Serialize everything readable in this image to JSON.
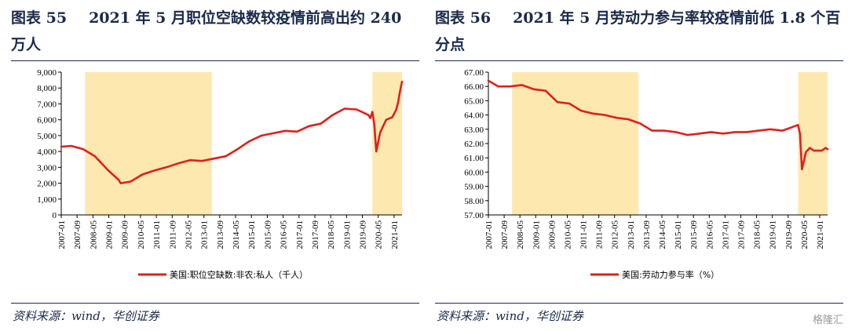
{
  "panels": [
    {
      "title_num": "图表 55",
      "title_text": "2021 年 5 月职位空缺数较疫情前高出约 240 万人",
      "source": "资料来源：wind，华创证券"
    },
    {
      "title_num": "图表 56",
      "title_text": "2021 年 5 月劳动力参与率较疫情前低 1.8 个百分点",
      "source": "资料来源：wind，华创证券"
    }
  ],
  "watermark": "格隆汇",
  "colors": {
    "line": "#e0201a",
    "shade": "#fde8b0",
    "axis": "#000000",
    "title": "#1a2a4a"
  },
  "chart_data": [
    {
      "type": "line",
      "x_ticks": [
        "2007-01",
        "2007-09",
        "2008-05",
        "2009-01",
        "2009-09",
        "2010-05",
        "2011-01",
        "2011-09",
        "2012-05",
        "2013-01",
        "2013-09",
        "2014-05",
        "2015-01",
        "2015-09",
        "2016-05",
        "2017-01",
        "2017-09",
        "2018-05",
        "2019-01",
        "2019-09",
        "2020-05",
        "2021-01"
      ],
      "y_ticks": [
        "0",
        "1,000",
        "2,000",
        "3,000",
        "4,000",
        "5,000",
        "6,000",
        "7,000",
        "8,000",
        "9,000"
      ],
      "ylim": [
        0,
        9000
      ],
      "xlim": [
        "2007-01",
        "2021-05"
      ],
      "shaded": [
        [
          "2008-01",
          "2013-05"
        ],
        [
          "2020-02",
          "2021-05"
        ]
      ],
      "series": [
        {
          "name": "美国:职位空缺数:非农:私人（千人）",
          "x": [
            "2007-01",
            "2007-06",
            "2007-12",
            "2008-06",
            "2008-12",
            "2009-06",
            "2009-07",
            "2009-12",
            "2010-06",
            "2010-12",
            "2011-06",
            "2011-12",
            "2012-06",
            "2012-12",
            "2013-06",
            "2013-12",
            "2014-06",
            "2014-12",
            "2015-06",
            "2015-12",
            "2016-06",
            "2016-12",
            "2017-06",
            "2017-12",
            "2018-06",
            "2018-12",
            "2019-06",
            "2019-12",
            "2020-01",
            "2020-02",
            "2020-03",
            "2020-04",
            "2020-06",
            "2020-09",
            "2020-12",
            "2021-02",
            "2021-03",
            "2021-04",
            "2021-05"
          ],
          "values": [
            4300,
            4350,
            4150,
            3700,
            2900,
            2200,
            2000,
            2100,
            2550,
            2800,
            3000,
            3250,
            3450,
            3400,
            3550,
            3700,
            4150,
            4650,
            5000,
            5150,
            5300,
            5250,
            5600,
            5750,
            6300,
            6700,
            6650,
            6300,
            6100,
            6500,
            5700,
            4000,
            5200,
            6000,
            6150,
            6600,
            7100,
            7800,
            8400
          ]
        }
      ]
    },
    {
      "type": "line",
      "x_ticks": [
        "2007-01",
        "2007-09",
        "2008-05",
        "2009-01",
        "2009-09",
        "2010-05",
        "2011-01",
        "2011-09",
        "2012-05",
        "2013-01",
        "2013-09",
        "2014-05",
        "2015-01",
        "2015-09",
        "2016-05",
        "2017-01",
        "2017-09",
        "2018-05",
        "2019-01",
        "2019-09",
        "2020-05",
        "2021-01"
      ],
      "y_ticks": [
        "57.00",
        "58.00",
        "59.00",
        "60.00",
        "61.00",
        "62.00",
        "63.00",
        "64.00",
        "65.00",
        "66.00",
        "67.00"
      ],
      "ylim": [
        57,
        67
      ],
      "xlim": [
        "2007-01",
        "2021-05"
      ],
      "shaded": [
        [
          "2008-01",
          "2013-05"
        ],
        [
          "2020-02",
          "2021-05"
        ]
      ],
      "series": [
        {
          "name": "美国:劳动力参与率（%）",
          "x": [
            "2007-01",
            "2007-06",
            "2007-12",
            "2008-06",
            "2008-12",
            "2009-06",
            "2009-12",
            "2010-06",
            "2010-12",
            "2011-06",
            "2011-12",
            "2012-06",
            "2012-12",
            "2013-06",
            "2013-12",
            "2014-06",
            "2014-12",
            "2015-06",
            "2015-12",
            "2016-06",
            "2016-12",
            "2017-06",
            "2017-12",
            "2018-06",
            "2018-12",
            "2019-06",
            "2019-12",
            "2020-02",
            "2020-03",
            "2020-04",
            "2020-05",
            "2020-06",
            "2020-08",
            "2020-10",
            "2020-12",
            "2021-02",
            "2021-04",
            "2021-05"
          ],
          "values": [
            66.4,
            66.0,
            66.0,
            66.1,
            65.8,
            65.7,
            64.9,
            64.8,
            64.3,
            64.1,
            64.0,
            63.8,
            63.7,
            63.4,
            62.9,
            62.9,
            62.8,
            62.6,
            62.7,
            62.8,
            62.7,
            62.8,
            62.8,
            62.9,
            63.0,
            62.9,
            63.2,
            63.3,
            62.7,
            60.2,
            60.8,
            61.4,
            61.7,
            61.5,
            61.5,
            61.5,
            61.7,
            61.6
          ]
        }
      ]
    }
  ]
}
